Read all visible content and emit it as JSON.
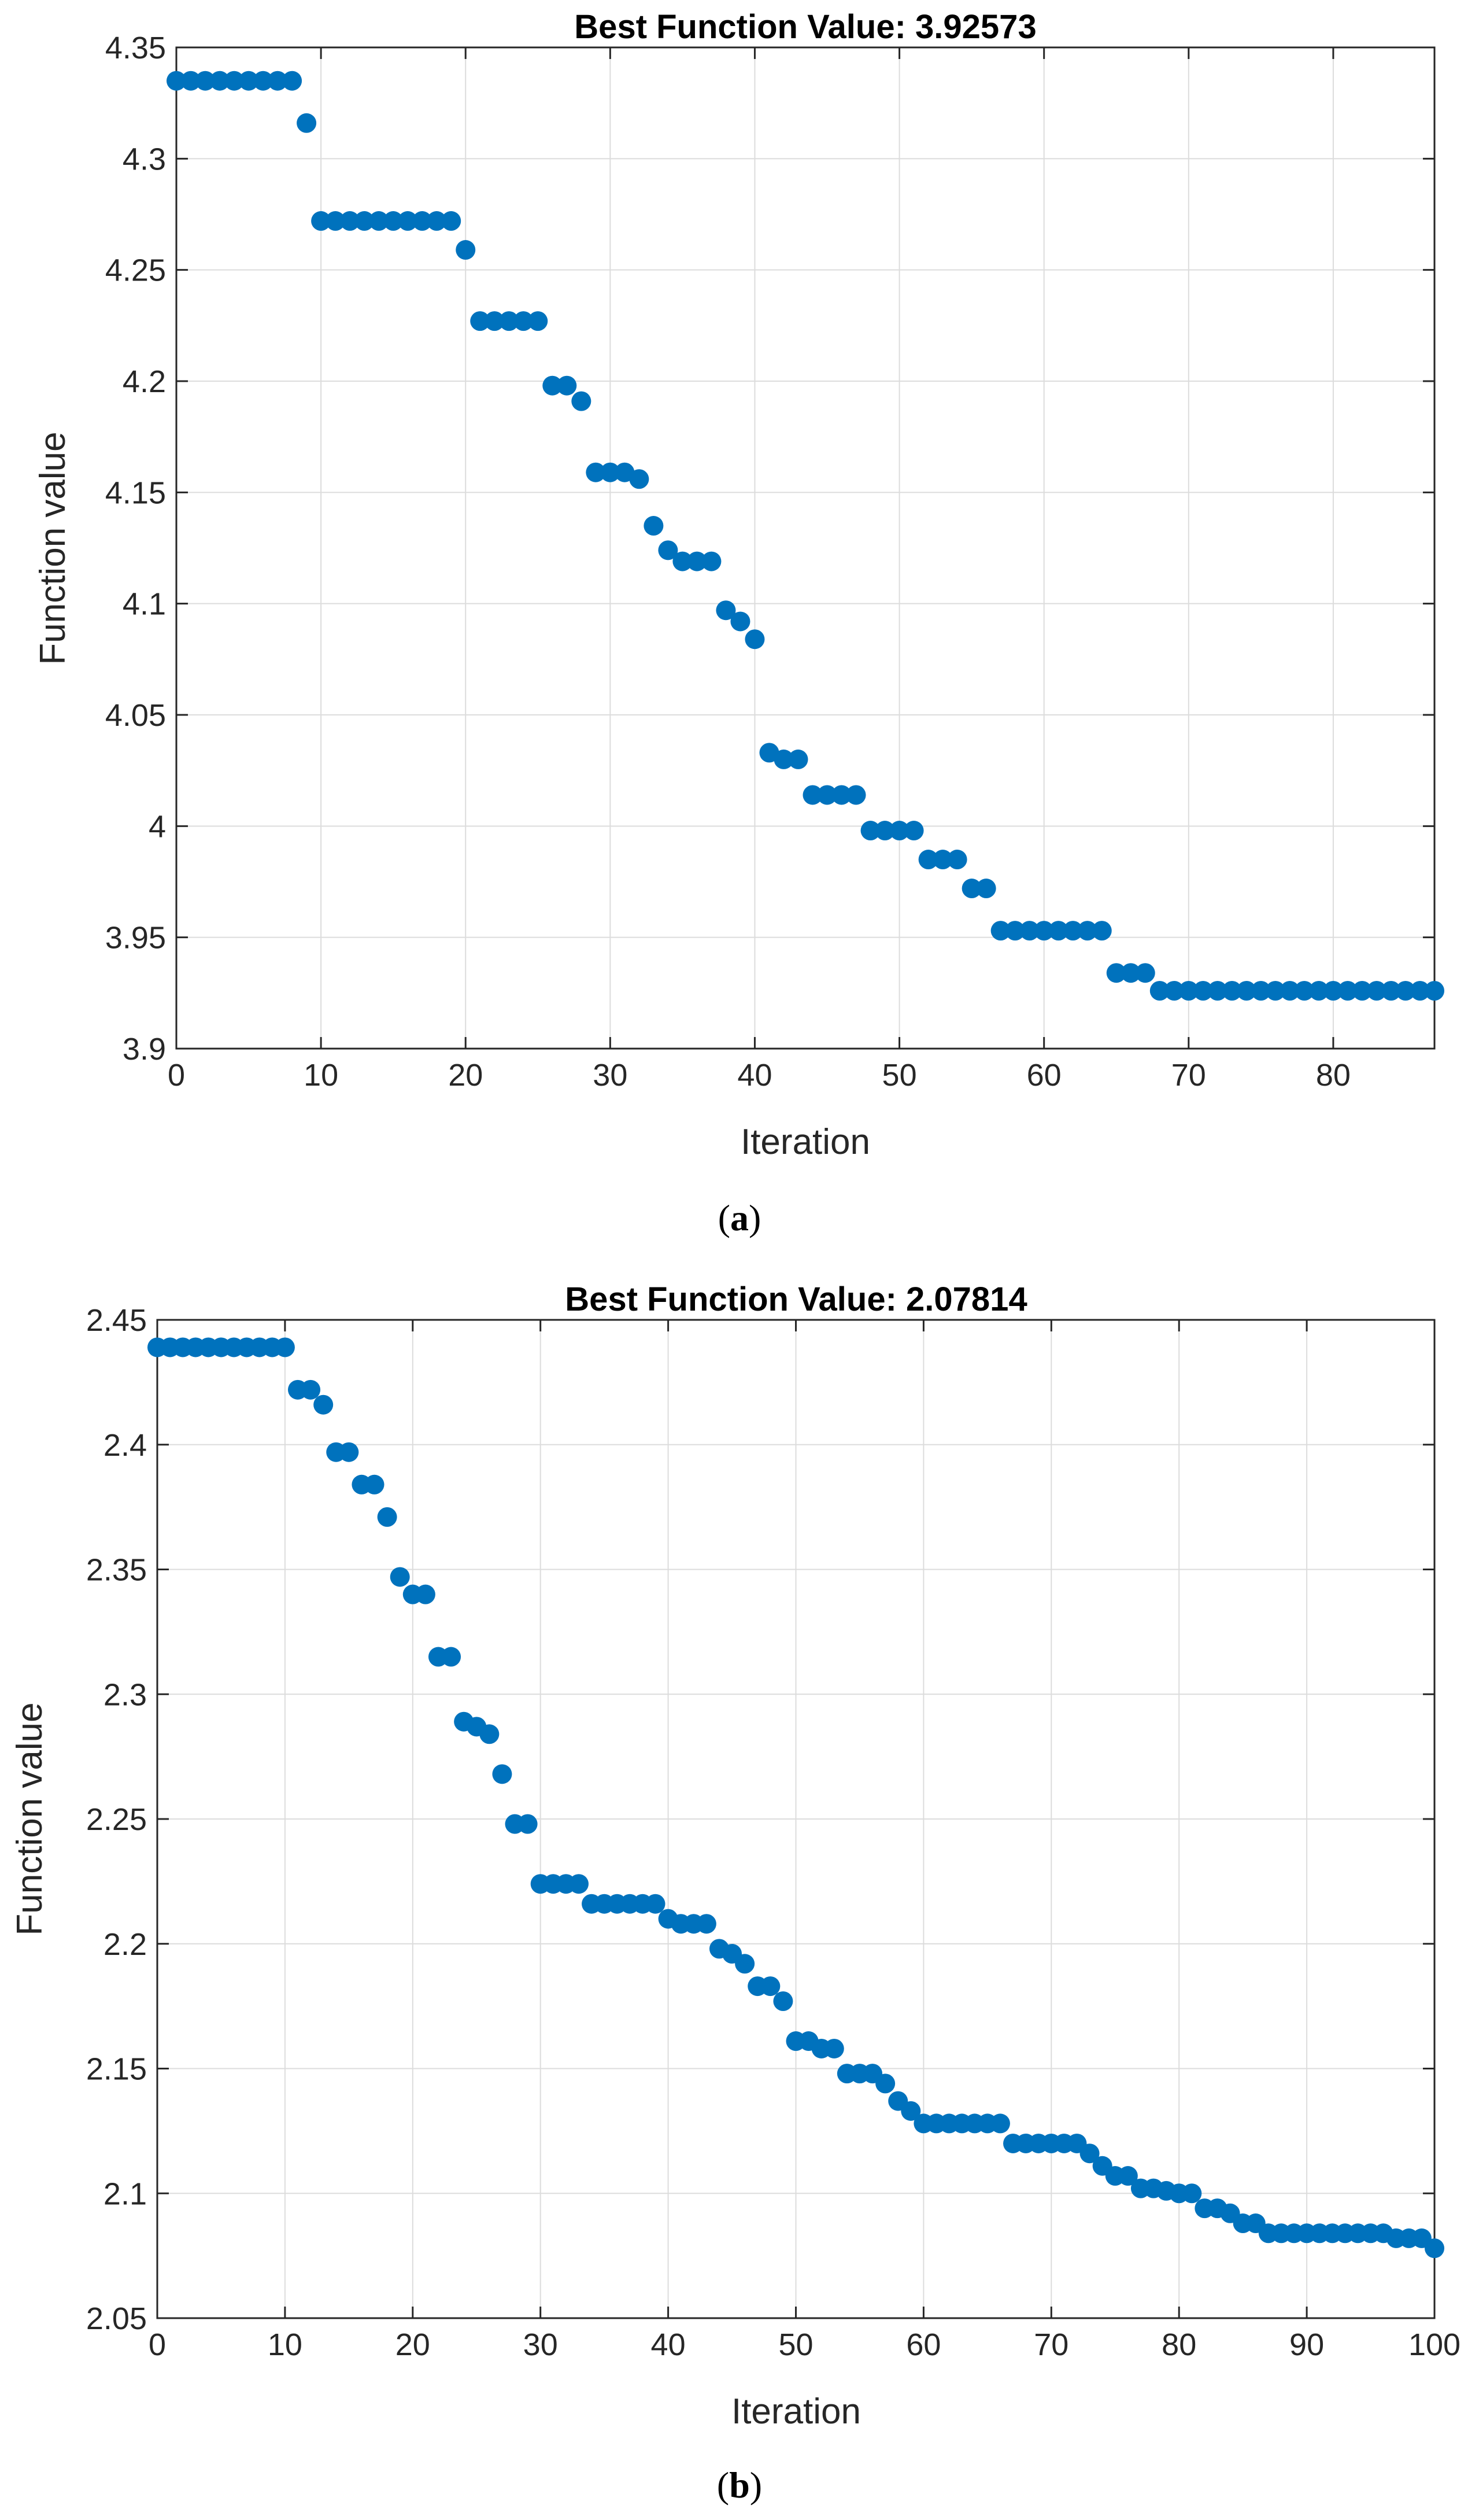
{
  "chart_data": [
    {
      "id": "a",
      "type": "scatter",
      "title": "Best Function Value: 3.92573",
      "xlabel": "Iteration",
      "ylabel": "Function value",
      "caption": {
        "open": "(",
        "letter": "a",
        "close": ")"
      },
      "xlim": [
        0,
        87
      ],
      "ylim": [
        3.9,
        4.35
      ],
      "xticks": [
        0,
        10,
        20,
        30,
        40,
        50,
        60,
        70,
        80
      ],
      "xtick_labels": [
        "0",
        "10",
        "20",
        "30",
        "40",
        "50",
        "60",
        "70",
        "80"
      ],
      "yticks": [
        3.9,
        3.95,
        4.0,
        4.05,
        4.1,
        4.15,
        4.2,
        4.25,
        4.3,
        4.35
      ],
      "ytick_labels": [
        "3.9",
        "3.95",
        "4",
        "4.05",
        "4.1",
        "4.15",
        "4.2",
        "4.25",
        "4.3",
        "4.35"
      ],
      "grid": true,
      "marker_color": "#0072BD",
      "x": [
        0,
        1,
        2,
        3,
        4,
        5,
        6,
        7,
        8,
        9,
        10,
        11,
        12,
        13,
        14,
        15,
        16,
        17,
        18,
        19,
        20,
        21,
        22,
        23,
        24,
        25,
        26,
        27,
        28,
        29,
        30,
        31,
        32,
        33,
        34,
        35,
        36,
        37,
        38,
        39,
        40,
        41,
        42,
        43,
        44,
        45,
        46,
        47,
        48,
        49,
        50,
        51,
        52,
        53,
        54,
        55,
        56,
        57,
        58,
        59,
        60,
        61,
        62,
        63,
        64,
        65,
        66,
        67,
        68,
        69,
        70,
        71,
        72,
        73,
        74,
        75,
        76,
        77,
        78,
        79,
        80,
        81,
        82,
        83,
        84,
        85,
        86,
        87
      ],
      "y": [
        4.335,
        4.335,
        4.335,
        4.335,
        4.335,
        4.335,
        4.335,
        4.335,
        4.335,
        4.316,
        4.272,
        4.272,
        4.272,
        4.272,
        4.272,
        4.272,
        4.272,
        4.272,
        4.272,
        4.272,
        4.259,
        4.227,
        4.227,
        4.227,
        4.227,
        4.227,
        4.198,
        4.198,
        4.191,
        4.159,
        4.159,
        4.159,
        4.156,
        4.135,
        4.124,
        4.119,
        4.119,
        4.119,
        4.097,
        4.092,
        4.084,
        4.033,
        4.03,
        4.03,
        4.014,
        4.014,
        4.014,
        4.014,
        3.998,
        3.998,
        3.998,
        3.998,
        3.985,
        3.985,
        3.985,
        3.972,
        3.972,
        3.953,
        3.953,
        3.953,
        3.953,
        3.953,
        3.953,
        3.953,
        3.953,
        3.934,
        3.934,
        3.934,
        3.926,
        3.926,
        3.926,
        3.926,
        3.926,
        3.926,
        3.926,
        3.926,
        3.926,
        3.926,
        3.926,
        3.926,
        3.926,
        3.926,
        3.926,
        3.926,
        3.926,
        3.926,
        3.926,
        3.926
      ]
    },
    {
      "id": "b",
      "type": "scatter",
      "title": "Best Function Value: 2.07814",
      "xlabel": "Iteration",
      "ylabel": "Function value",
      "caption": {
        "open": "(",
        "letter": "b",
        "close": ")"
      },
      "xlim": [
        0,
        100
      ],
      "ylim": [
        2.05,
        2.45
      ],
      "xticks": [
        0,
        10,
        20,
        30,
        40,
        50,
        60,
        70,
        80,
        90,
        100
      ],
      "xtick_labels": [
        "0",
        "10",
        "20",
        "30",
        "40",
        "50",
        "60",
        "70",
        "80",
        "90",
        "100"
      ],
      "yticks": [
        2.05,
        2.1,
        2.15,
        2.2,
        2.25,
        2.3,
        2.35,
        2.4,
        2.45
      ],
      "ytick_labels": [
        "2.05",
        "2.1",
        "2.15",
        "2.2",
        "2.25",
        "2.3",
        "2.35",
        "2.4",
        "2.45"
      ],
      "grid": true,
      "marker_color": "#0072BD",
      "x": [
        0,
        1,
        2,
        3,
        4,
        5,
        6,
        7,
        8,
        9,
        10,
        11,
        12,
        13,
        14,
        15,
        16,
        17,
        18,
        19,
        20,
        21,
        22,
        23,
        24,
        25,
        26,
        27,
        28,
        29,
        30,
        31,
        32,
        33,
        34,
        35,
        36,
        37,
        38,
        39,
        40,
        41,
        42,
        43,
        44,
        45,
        46,
        47,
        48,
        49,
        50,
        51,
        52,
        53,
        54,
        55,
        56,
        57,
        58,
        59,
        60,
        61,
        62,
        63,
        64,
        65,
        66,
        67,
        68,
        69,
        70,
        71,
        72,
        73,
        74,
        75,
        76,
        77,
        78,
        79,
        80,
        81,
        82,
        83,
        84,
        85,
        86,
        87,
        88,
        89,
        90,
        91,
        92,
        93,
        94,
        95,
        96,
        97,
        98,
        99,
        100
      ],
      "y": [
        2.439,
        2.439,
        2.439,
        2.439,
        2.439,
        2.439,
        2.439,
        2.439,
        2.439,
        2.439,
        2.439,
        2.422,
        2.422,
        2.416,
        2.397,
        2.397,
        2.384,
        2.384,
        2.371,
        2.347,
        2.34,
        2.34,
        2.315,
        2.315,
        2.289,
        2.287,
        2.284,
        2.268,
        2.248,
        2.248,
        2.224,
        2.224,
        2.224,
        2.224,
        2.216,
        2.216,
        2.216,
        2.216,
        2.216,
        2.216,
        2.21,
        2.208,
        2.208,
        2.208,
        2.198,
        2.196,
        2.192,
        2.183,
        2.183,
        2.177,
        2.161,
        2.161,
        2.158,
        2.158,
        2.148,
        2.148,
        2.148,
        2.144,
        2.137,
        2.133,
        2.128,
        2.128,
        2.128,
        2.128,
        2.128,
        2.128,
        2.128,
        2.12,
        2.12,
        2.12,
        2.12,
        2.12,
        2.12,
        2.116,
        2.111,
        2.107,
        2.107,
        2.102,
        2.102,
        2.101,
        2.1,
        2.1,
        2.094,
        2.094,
        2.092,
        2.088,
        2.088,
        2.084,
        2.084,
        2.084,
        2.084,
        2.084,
        2.084,
        2.084,
        2.084,
        2.084,
        2.084,
        2.082,
        2.082,
        2.082,
        2.078
      ]
    }
  ]
}
